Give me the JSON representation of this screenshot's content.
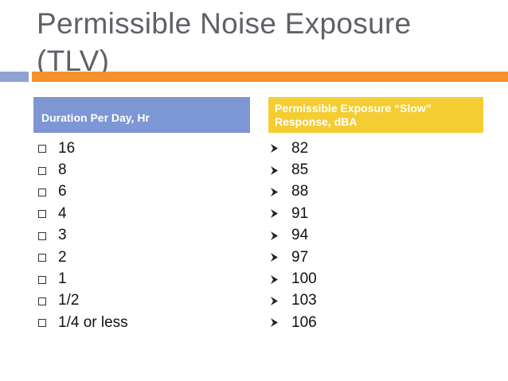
{
  "title": "Permissible Noise Exposure (TLV)",
  "colors": {
    "title": "#5e6168",
    "accent_blue": "#8fa3d3",
    "accent_orange": "#f5922d",
    "header_left_bg": "#7d96d4",
    "header_right_bg": "#f4cd33"
  },
  "columns": {
    "left": {
      "header": "Duration Per Day, Hr",
      "bullet_icon": "square-bullet-icon",
      "items": [
        "16",
        "8",
        "6",
        "4",
        "3",
        "2",
        "1",
        "1/2",
        "1/4 or less"
      ]
    },
    "right": {
      "header": "Permissible Exposure “Slow” Response, dBA",
      "bullet_icon": "arrow-bullet-icon",
      "items": [
        "82",
        "85",
        "88",
        "91",
        "94",
        "97",
        "100",
        "103",
        "106"
      ]
    }
  }
}
